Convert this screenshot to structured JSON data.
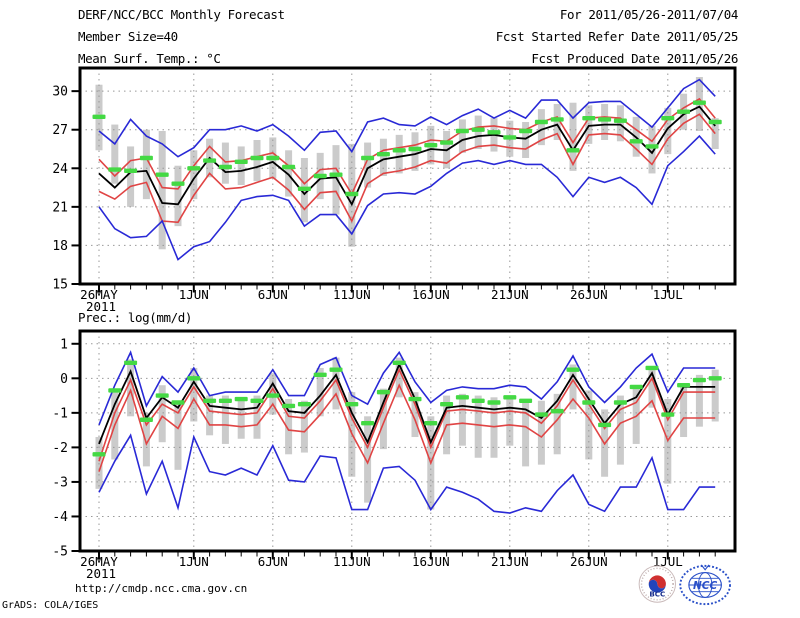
{
  "header": {
    "title": "DERF/NCC/BCC Monthly Forecast",
    "member_size": "Member Size=40",
    "for_range": "For 2011/05/26-2011/07/04",
    "refer_date": "Fcst Started Refer Date 2011/05/25",
    "produced_date": "Fcst Produced Date 2011/05/26"
  },
  "footer": {
    "url": "http://cmdp.ncc.cma.gov.cn",
    "credit": "GrADS: COLA/IGES",
    "bcc_logo_label": "BCC",
    "ncc_logo_label": "NCC"
  },
  "colors": {
    "ensemble_envelope": "#2929d6",
    "spread_lines": "#e04444",
    "ensemble_mean": "#000000",
    "observation": "#44d944",
    "member_bars": "#cbcbcb",
    "grid": "#999999",
    "frame": "#000000"
  },
  "chart_data": [
    {
      "type": "line",
      "title": "Mean Surf. Temp.: °C",
      "ylim": [
        15,
        31.8
      ],
      "yticks": [
        15,
        18,
        21,
        24,
        27,
        30
      ],
      "n_days": 40,
      "x_axis": {
        "tick_days": [
          0,
          6,
          11,
          16,
          21,
          26,
          31,
          36
        ],
        "tick_labels": [
          "26MAY",
          "1JUN",
          "6JUN",
          "11JUN",
          "16JUN",
          "21JUN",
          "26JUN",
          "1JUL"
        ],
        "year_label": "2011",
        "start_date": "2011/05/26",
        "end_date": "2011/07/04"
      },
      "series": [
        {
          "name": "ensemble-max",
          "color": "#2929d6",
          "values": [
            26.9,
            25.9,
            27.8,
            26.5,
            25.9,
            24.9,
            25.6,
            27.0,
            27.0,
            27.3,
            26.9,
            27.4,
            26.5,
            25.4,
            26.8,
            26.9,
            25.3,
            27.6,
            27.9,
            27.4,
            27.3,
            28.0,
            27.4,
            28.1,
            28.6,
            27.9,
            28.5,
            27.9,
            29.3,
            29.3,
            27.9,
            29.1,
            29.2,
            29.2,
            28.2,
            27.2,
            28.7,
            30.2,
            30.9,
            29.6
          ]
        },
        {
          "name": "upper-spread",
          "color": "#e04444",
          "values": [
            24.7,
            23.4,
            24.6,
            24.8,
            22.5,
            22.4,
            24.2,
            25.7,
            24.5,
            24.6,
            24.9,
            25.2,
            24.2,
            22.8,
            23.9,
            24.0,
            22.0,
            24.7,
            25.4,
            25.6,
            25.8,
            26.2,
            26.1,
            26.9,
            27.2,
            27.3,
            27.1,
            27.0,
            27.6,
            28.0,
            26.0,
            27.9,
            28.0,
            27.9,
            27.0,
            26.1,
            27.8,
            28.7,
            29.4,
            27.9
          ]
        },
        {
          "name": "ensemble-mean",
          "color": "#000000",
          "values": [
            23.6,
            22.5,
            23.7,
            23.8,
            21.3,
            21.2,
            23.2,
            24.8,
            23.7,
            23.8,
            24.1,
            24.5,
            23.5,
            22.0,
            23.2,
            23.3,
            21.2,
            24.0,
            24.7,
            24.9,
            25.1,
            25.5,
            25.4,
            26.2,
            26.5,
            26.6,
            26.4,
            26.3,
            27.0,
            27.4,
            25.4,
            27.3,
            27.4,
            27.4,
            26.4,
            25.2,
            27.1,
            28.2,
            28.8,
            27.3
          ]
        },
        {
          "name": "lower-spread",
          "color": "#e04444",
          "values": [
            22.2,
            21.6,
            22.6,
            22.9,
            19.9,
            19.8,
            21.9,
            23.6,
            22.4,
            22.5,
            22.9,
            23.3,
            22.3,
            20.8,
            22.1,
            22.2,
            19.9,
            22.8,
            23.6,
            23.8,
            24.1,
            24.6,
            24.4,
            25.3,
            25.7,
            25.8,
            25.6,
            25.5,
            26.2,
            26.7,
            24.3,
            26.6,
            26.7,
            26.6,
            25.5,
            24.3,
            26.3,
            27.5,
            28.2,
            26.7
          ]
        },
        {
          "name": "ensemble-min",
          "color": "#2929d6",
          "values": [
            21.0,
            19.3,
            18.6,
            18.7,
            19.9,
            16.9,
            17.9,
            18.3,
            19.8,
            21.5,
            21.8,
            21.9,
            21.5,
            19.5,
            20.4,
            20.4,
            18.9,
            21.1,
            22.0,
            22.1,
            22.0,
            22.6,
            23.6,
            24.4,
            24.6,
            24.3,
            24.6,
            24.3,
            24.3,
            23.3,
            21.8,
            23.3,
            22.9,
            23.3,
            22.5,
            21.2,
            24.2,
            25.3,
            26.5,
            25.1
          ]
        }
      ],
      "observation": {
        "name": "observation-climatology",
        "color": "#44d944",
        "values": [
          28.0,
          23.9,
          23.8,
          24.8,
          23.5,
          22.8,
          24.0,
          24.6,
          24.1,
          24.5,
          24.8,
          24.8,
          24.1,
          22.4,
          23.4,
          23.5,
          22.0,
          24.8,
          25.1,
          25.4,
          25.5,
          25.8,
          26.0,
          26.9,
          27.0,
          26.8,
          26.4,
          26.9,
          27.6,
          27.8,
          25.4,
          27.9,
          27.8,
          27.7,
          26.1,
          25.7,
          27.9,
          28.4,
          29.1,
          27.6
        ]
      },
      "spread_bars": {
        "color": "#cbcbcb",
        "top": [
          30.5,
          27.4,
          25.7,
          27.0,
          26.9,
          24.2,
          25.4,
          26.3,
          26.0,
          25.7,
          26.2,
          26.4,
          25.4,
          24.8,
          25.2,
          25.8,
          25.9,
          26.0,
          26.3,
          26.6,
          26.8,
          27.3,
          26.9,
          27.8,
          28.1,
          27.9,
          27.7,
          27.6,
          28.6,
          29.0,
          29.1,
          28.9,
          29.0,
          28.9,
          28.0,
          27.3,
          28.7,
          29.8,
          31.1,
          27.9
        ],
        "bottom": [
          25.4,
          22.8,
          21.0,
          21.6,
          17.7,
          19.5,
          21.6,
          23.3,
          22.8,
          22.7,
          23.0,
          23.2,
          21.8,
          19.8,
          21.6,
          20.4,
          17.9,
          22.5,
          23.4,
          23.6,
          23.8,
          24.3,
          24.0,
          25.2,
          25.5,
          25.3,
          24.9,
          24.8,
          25.8,
          26.2,
          23.8,
          25.9,
          26.2,
          26.1,
          24.9,
          23.6,
          25.1,
          27.0,
          26.9,
          25.5
        ]
      }
    },
    {
      "type": "line",
      "title": "Prec.: log(mm/d)",
      "ylim": [
        -5,
        1.37
      ],
      "yticks": [
        -5,
        -4,
        -3,
        -2,
        -1,
        0,
        1
      ],
      "n_days": 40,
      "x_axis": {
        "tick_days": [
          0,
          6,
          11,
          16,
          21,
          26,
          31,
          36
        ],
        "tick_labels": [
          "26MAY",
          "1JUN",
          "6JUN",
          "11JUN",
          "16JUN",
          "21JUN",
          "26JUN",
          "1JUL"
        ],
        "year_label": "2011",
        "start_date": "2011/05/26",
        "end_date": "2011/07/04"
      },
      "series": [
        {
          "name": "ensemble-max",
          "color": "#2929d6",
          "values": [
            -1.35,
            -0.2,
            0.75,
            -0.8,
            0.05,
            -0.4,
            0.3,
            -0.5,
            -0.4,
            -0.4,
            -0.4,
            0.25,
            -0.5,
            -0.5,
            0.4,
            0.6,
            -0.5,
            -0.75,
            0.15,
            0.75,
            -0.1,
            -0.7,
            -0.35,
            -0.25,
            -0.3,
            -0.3,
            -0.2,
            -0.25,
            -0.6,
            -0.1,
            0.65,
            -0.25,
            -0.7,
            -0.25,
            0.3,
            0.7,
            -0.4,
            0.3,
            0.3,
            0.3
          ]
        },
        {
          "name": "upper-spread",
          "color": "#e04444",
          "values": [
            -2.4,
            -1.0,
            -0.05,
            -1.35,
            -0.75,
            -1.0,
            -0.25,
            -0.95,
            -1.0,
            -1.05,
            -1.0,
            -0.3,
            -1.1,
            -1.15,
            -0.65,
            -0.05,
            -1.15,
            -2.0,
            -0.85,
            0.25,
            -0.75,
            -2.0,
            -0.95,
            -0.9,
            -0.95,
            -1.0,
            -0.95,
            -1.0,
            -1.3,
            -0.8,
            -0.05,
            -0.75,
            -1.45,
            -0.9,
            -0.7,
            0.0,
            -1.2,
            -0.4,
            -0.4,
            -0.4
          ]
        },
        {
          "name": "ensemble-mean",
          "color": "#000000",
          "values": [
            -1.9,
            -0.75,
            0.2,
            -1.15,
            -0.55,
            -0.85,
            -0.1,
            -0.8,
            -0.85,
            -0.9,
            -0.85,
            -0.15,
            -0.95,
            -1.0,
            -0.5,
            0.1,
            -1.0,
            -1.85,
            -0.7,
            0.4,
            -0.6,
            -1.85,
            -0.85,
            -0.8,
            -0.85,
            -0.9,
            -0.85,
            -0.9,
            -1.15,
            -0.65,
            0.1,
            -0.6,
            -1.3,
            -0.75,
            -0.55,
            0.15,
            -1.05,
            -0.25,
            -0.25,
            -0.25
          ]
        },
        {
          "name": "lower-spread",
          "color": "#e04444",
          "values": [
            -2.7,
            -1.35,
            -0.35,
            -1.9,
            -1.1,
            -1.45,
            -0.6,
            -1.35,
            -1.35,
            -1.4,
            -1.35,
            -0.75,
            -1.5,
            -1.55,
            -1.05,
            -0.45,
            -1.6,
            -2.45,
            -1.3,
            -0.2,
            -1.2,
            -2.45,
            -1.35,
            -1.3,
            -1.35,
            -1.4,
            -1.35,
            -1.4,
            -1.7,
            -1.2,
            -0.6,
            -1.15,
            -1.9,
            -1.3,
            -1.1,
            -0.65,
            -1.8,
            -1.15,
            -1.15,
            -1.15
          ]
        },
        {
          "name": "ensemble-min",
          "color": "#2929d6",
          "values": [
            -3.3,
            -2.4,
            -1.65,
            -3.35,
            -2.4,
            -3.75,
            -1.7,
            -2.7,
            -2.8,
            -2.6,
            -2.8,
            -1.95,
            -2.95,
            -3.0,
            -2.25,
            -2.3,
            -3.8,
            -3.8,
            -2.6,
            -2.55,
            -2.95,
            -3.8,
            -3.15,
            -3.3,
            -3.5,
            -3.85,
            -3.9,
            -3.75,
            -3.85,
            -3.25,
            -2.8,
            -3.65,
            -3.85,
            -3.15,
            -3.15,
            -2.3,
            -3.8,
            -3.8,
            -3.15,
            -3.15
          ]
        }
      ],
      "observation": {
        "name": "observation-climatology",
        "color": "#44d944",
        "values": [
          -2.2,
          -0.35,
          0.45,
          -1.2,
          -0.5,
          -0.7,
          0.0,
          -0.65,
          -0.65,
          -0.6,
          -0.65,
          -0.5,
          -0.8,
          -0.75,
          0.1,
          0.25,
          -0.75,
          -1.3,
          -0.4,
          0.45,
          -0.6,
          -1.3,
          -0.75,
          -0.55,
          -0.65,
          -0.7,
          -0.55,
          -0.65,
          -1.05,
          -0.95,
          0.25,
          -0.7,
          -1.35,
          -0.7,
          -0.25,
          0.3,
          -1.05,
          -0.2,
          -0.05,
          0.0
        ]
      },
      "spread_bars": {
        "color": "#cbcbcb",
        "top": [
          -1.7,
          -0.4,
          0.55,
          -1.0,
          -0.2,
          -0.65,
          0.3,
          -0.5,
          -0.5,
          -0.55,
          -0.5,
          0.15,
          -0.6,
          -0.65,
          0.3,
          0.6,
          -0.4,
          -1.1,
          -0.3,
          0.6,
          -0.4,
          -1.1,
          -0.5,
          -0.45,
          -0.5,
          -0.55,
          -0.5,
          -0.6,
          -0.65,
          -0.45,
          0.4,
          -0.35,
          -0.9,
          -0.5,
          -0.3,
          0.35,
          -0.6,
          -0.2,
          0.1,
          0.25
        ],
        "bottom": [
          -3.2,
          -2.35,
          -1.1,
          -2.55,
          -1.85,
          -2.65,
          -1.25,
          -1.65,
          -1.9,
          -1.75,
          -1.75,
          -1.05,
          -2.2,
          -2.15,
          -1.1,
          -0.9,
          -2.85,
          -3.6,
          -2.05,
          -0.55,
          -1.7,
          -3.8,
          -2.2,
          -1.95,
          -2.3,
          -2.3,
          -1.95,
          -2.55,
          -2.5,
          -2.2,
          -0.9,
          -2.35,
          -2.85,
          -2.5,
          -1.9,
          -0.85,
          -3.05,
          -1.7,
          -1.4,
          -1.25
        ]
      }
    }
  ]
}
